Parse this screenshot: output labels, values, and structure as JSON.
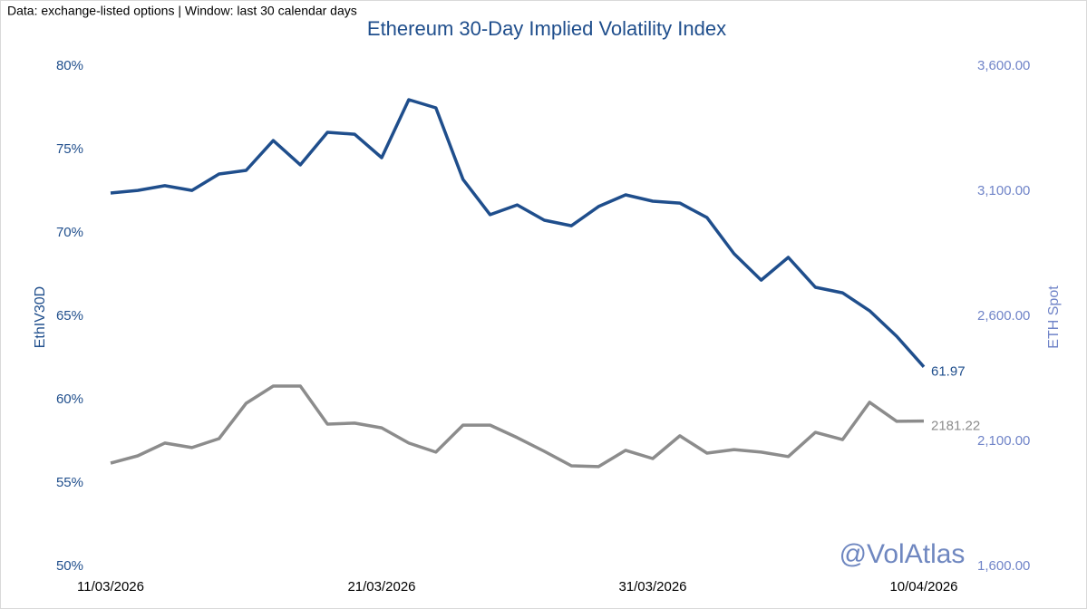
{
  "chart_data": {
    "type": "line",
    "title": "Ethereum 30-Day Implied Volatility Index",
    "annotations": [
      "Data: exchange-listed options | Window: last 30 calendar days",
      "@VolAtlas"
    ],
    "y_label": "EthIV30D",
    "y2_label": "ETH Spot",
    "categories": [
      "11/03/2026",
      null,
      null,
      null,
      null,
      null,
      null,
      null,
      null,
      null,
      "21/03/2026",
      null,
      null,
      null,
      null,
      null,
      null,
      null,
      null,
      null,
      "31/03/2026",
      null,
      null,
      null,
      null,
      null,
      null,
      null,
      null,
      null,
      "10/04/2026"
    ],
    "series": [
      {
        "name": "EthIV30D",
        "color": "#1f4e8c",
        "values": [
          72.39,
          72.55,
          72.83,
          72.55,
          73.53,
          73.75,
          75.54,
          74.08,
          76.03,
          75.92,
          74.51,
          77.99,
          77.5,
          73.21,
          71.09,
          71.68,
          70.76,
          70.43,
          71.58,
          72.28,
          71.9,
          71.79,
          70.92,
          68.75,
          67.17,
          68.53,
          66.74,
          66.41,
          65.33,
          63.8,
          61.97
        ]
      },
      {
        "name": "ETH Spot",
        "color": "#8c8c8c",
        "axis": "y2",
        "values": [
          2013,
          2042,
          2093,
          2075,
          2111,
          2252,
          2321,
          2321,
          2169,
          2173,
          2154,
          2093,
          2057,
          2165,
          2165,
          2115,
          2060,
          2002,
          1999,
          2064,
          2031,
          2122,
          2053,
          2067,
          2057,
          2039,
          2136,
          2107,
          2256,
          2180,
          2181.22
        ]
      }
    ],
    "ylim": [
      50,
      80
    ],
    "yticks": [
      {
        "value": 50,
        "label": "50%"
      },
      {
        "value": 55,
        "label": "55%"
      },
      {
        "value": 60,
        "label": "60%"
      },
      {
        "value": 65,
        "label": "65%"
      },
      {
        "value": 70,
        "label": "70%"
      },
      {
        "value": 75,
        "label": "75%"
      },
      {
        "value": 80,
        "label": "80%"
      }
    ],
    "y2lim": [
      1600,
      3600
    ],
    "y2ticks": [
      {
        "value": 1600,
        "label": "1,600.00"
      },
      {
        "value": 2100,
        "label": "2,100.00"
      },
      {
        "value": 2600,
        "label": "2,600.00"
      },
      {
        "value": 3100,
        "label": "3,100.00"
      },
      {
        "value": 3600,
        "label": "3,600.00"
      }
    ],
    "grid": false
  }
}
